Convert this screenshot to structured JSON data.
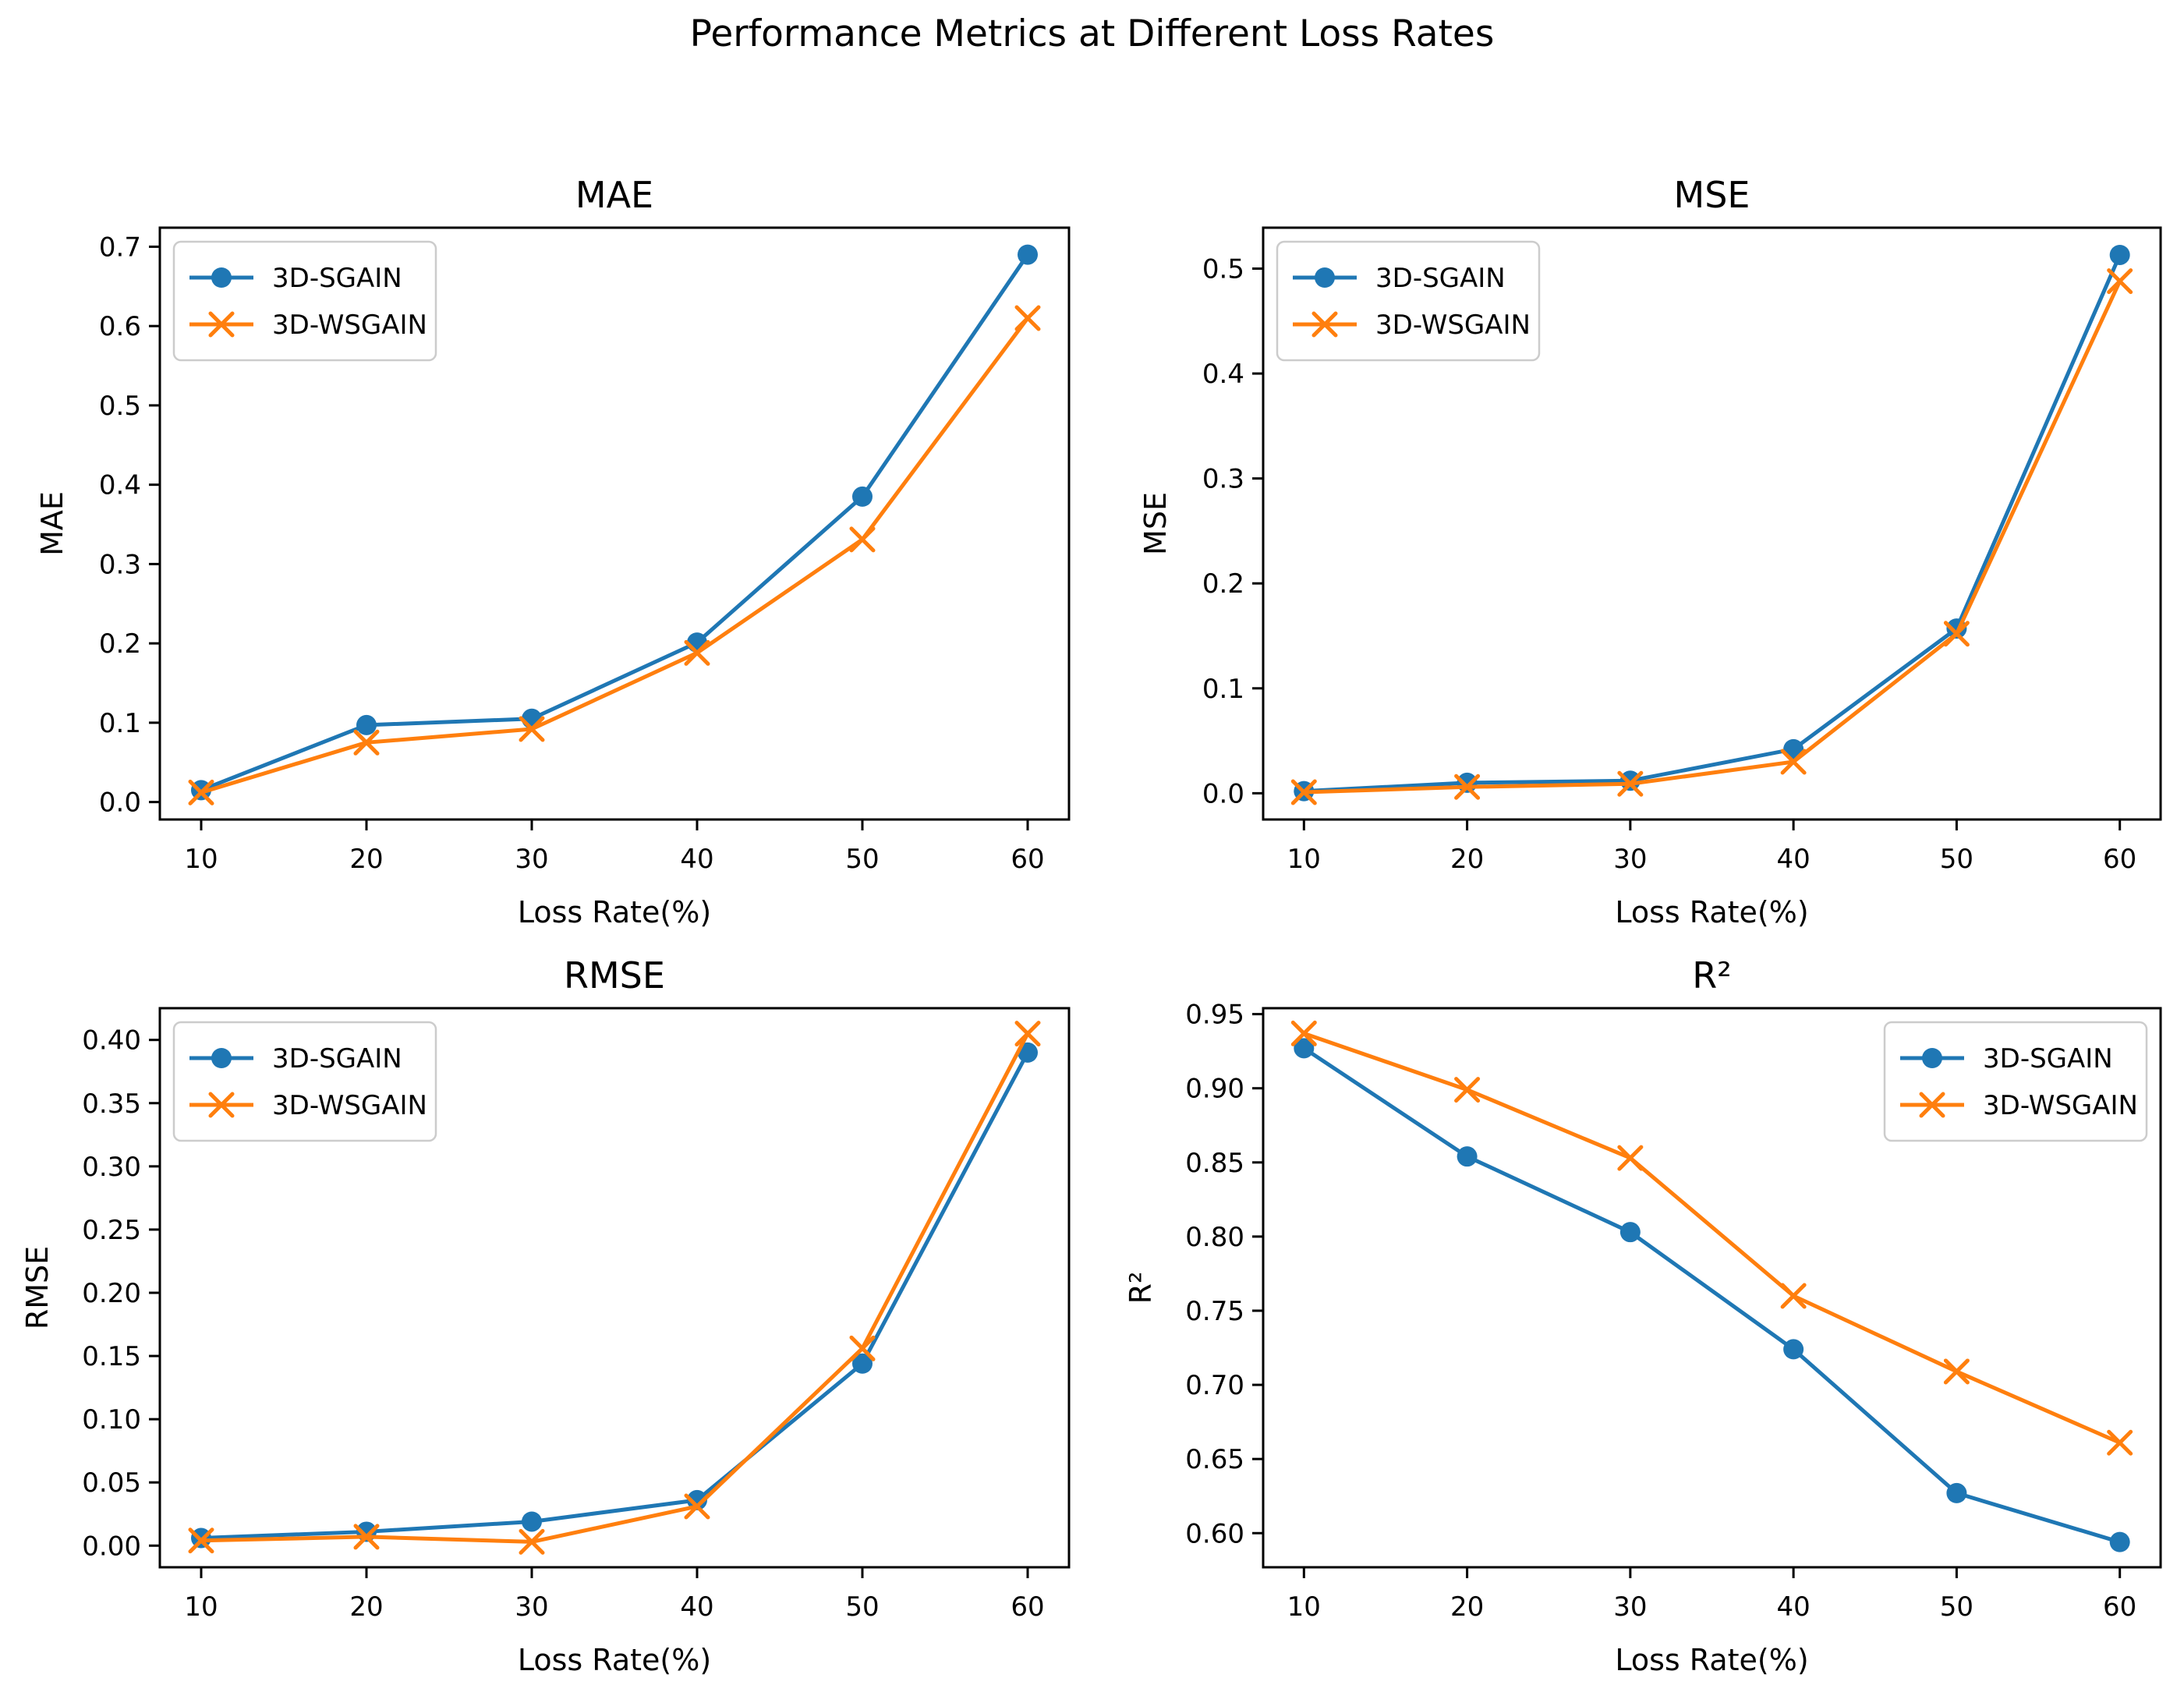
{
  "suptitle": "Performance Metrics at Different Loss Rates",
  "colors": {
    "series_blue": "#1f77b4",
    "series_orange": "#ff7f0e",
    "spine": "#000000",
    "text": "#000000",
    "legend_border": "#cccccc",
    "background": "#ffffff"
  },
  "chart_data": [
    {
      "type": "line",
      "title": "MAE",
      "ylabel": "MAE",
      "xlabel": "Loss Rate(%)",
      "x": [
        10,
        20,
        30,
        40,
        50,
        60
      ],
      "series": [
        {
          "name": "3D-SGAIN",
          "color": "#1f77b4",
          "marker": "circle",
          "values": [
            0.015,
            0.097,
            0.105,
            0.201,
            0.385,
            0.69
          ]
        },
        {
          "name": "3D-WSGAIN",
          "color": "#ff7f0e",
          "marker": "x",
          "values": [
            0.012,
            0.075,
            0.092,
            0.188,
            0.331,
            0.61
          ]
        }
      ],
      "xticks": [
        10,
        20,
        30,
        40,
        50,
        60
      ],
      "yticks": [
        0.0,
        0.1,
        0.2,
        0.3,
        0.4,
        0.5,
        0.6,
        0.7
      ],
      "ytick_decimals": 1,
      "xlim": [
        7.5,
        62.5
      ],
      "ylim": [
        -0.022,
        0.724
      ],
      "grid": false,
      "legend_position": "top-left"
    },
    {
      "type": "line",
      "title": "MSE",
      "ylabel": "MSE",
      "xlabel": "Loss Rate(%)",
      "x": [
        10,
        20,
        30,
        40,
        50,
        60
      ],
      "series": [
        {
          "name": "3D-SGAIN",
          "color": "#1f77b4",
          "marker": "circle",
          "values": [
            0.002,
            0.01,
            0.012,
            0.042,
            0.157,
            0.513
          ]
        },
        {
          "name": "3D-WSGAIN",
          "color": "#ff7f0e",
          "marker": "x",
          "values": [
            0.001,
            0.006,
            0.009,
            0.03,
            0.152,
            0.488
          ]
        }
      ],
      "xticks": [
        10,
        20,
        30,
        40,
        50,
        60
      ],
      "yticks": [
        0.0,
        0.1,
        0.2,
        0.3,
        0.4,
        0.5
      ],
      "ytick_decimals": 1,
      "xlim": [
        7.5,
        62.5
      ],
      "ylim": [
        -0.025,
        0.539
      ],
      "grid": false,
      "legend_position": "top-left"
    },
    {
      "type": "line",
      "title": "RMSE",
      "ylabel": "RMSE",
      "xlabel": "Loss Rate(%)",
      "x": [
        10,
        20,
        30,
        40,
        50,
        60
      ],
      "series": [
        {
          "name": "3D-SGAIN",
          "color": "#1f77b4",
          "marker": "circle",
          "values": [
            0.006,
            0.011,
            0.019,
            0.036,
            0.144,
            0.39
          ]
        },
        {
          "name": "3D-WSGAIN",
          "color": "#ff7f0e",
          "marker": "x",
          "values": [
            0.004,
            0.007,
            0.003,
            0.031,
            0.156,
            0.405
          ]
        }
      ],
      "xticks": [
        10,
        20,
        30,
        40,
        50,
        60
      ],
      "yticks": [
        0.0,
        0.05,
        0.1,
        0.15,
        0.2,
        0.25,
        0.3,
        0.35,
        0.4
      ],
      "ytick_decimals": 2,
      "xlim": [
        7.5,
        62.5
      ],
      "ylim": [
        -0.0171,
        0.4251
      ],
      "grid": false,
      "legend_position": "top-left"
    },
    {
      "type": "line",
      "title": "R²",
      "ylabel": "R²",
      "xlabel": "Loss Rate(%)",
      "x": [
        10,
        20,
        30,
        40,
        50,
        60
      ],
      "series": [
        {
          "name": "3D-SGAIN",
          "color": "#1f77b4",
          "marker": "circle",
          "values": [
            0.927,
            0.854,
            0.803,
            0.724,
            0.627,
            0.594
          ]
        },
        {
          "name": "3D-WSGAIN",
          "color": "#ff7f0e",
          "marker": "x",
          "values": [
            0.937,
            0.899,
            0.853,
            0.76,
            0.709,
            0.661
          ]
        }
      ],
      "xticks": [
        10,
        20,
        30,
        40,
        50,
        60
      ],
      "yticks": [
        0.6,
        0.65,
        0.7,
        0.75,
        0.8,
        0.85,
        0.9,
        0.95
      ],
      "ytick_decimals": 2,
      "xlim": [
        7.5,
        62.5
      ],
      "ylim": [
        0.577,
        0.954
      ],
      "grid": false,
      "legend_position": "top-right"
    }
  ]
}
